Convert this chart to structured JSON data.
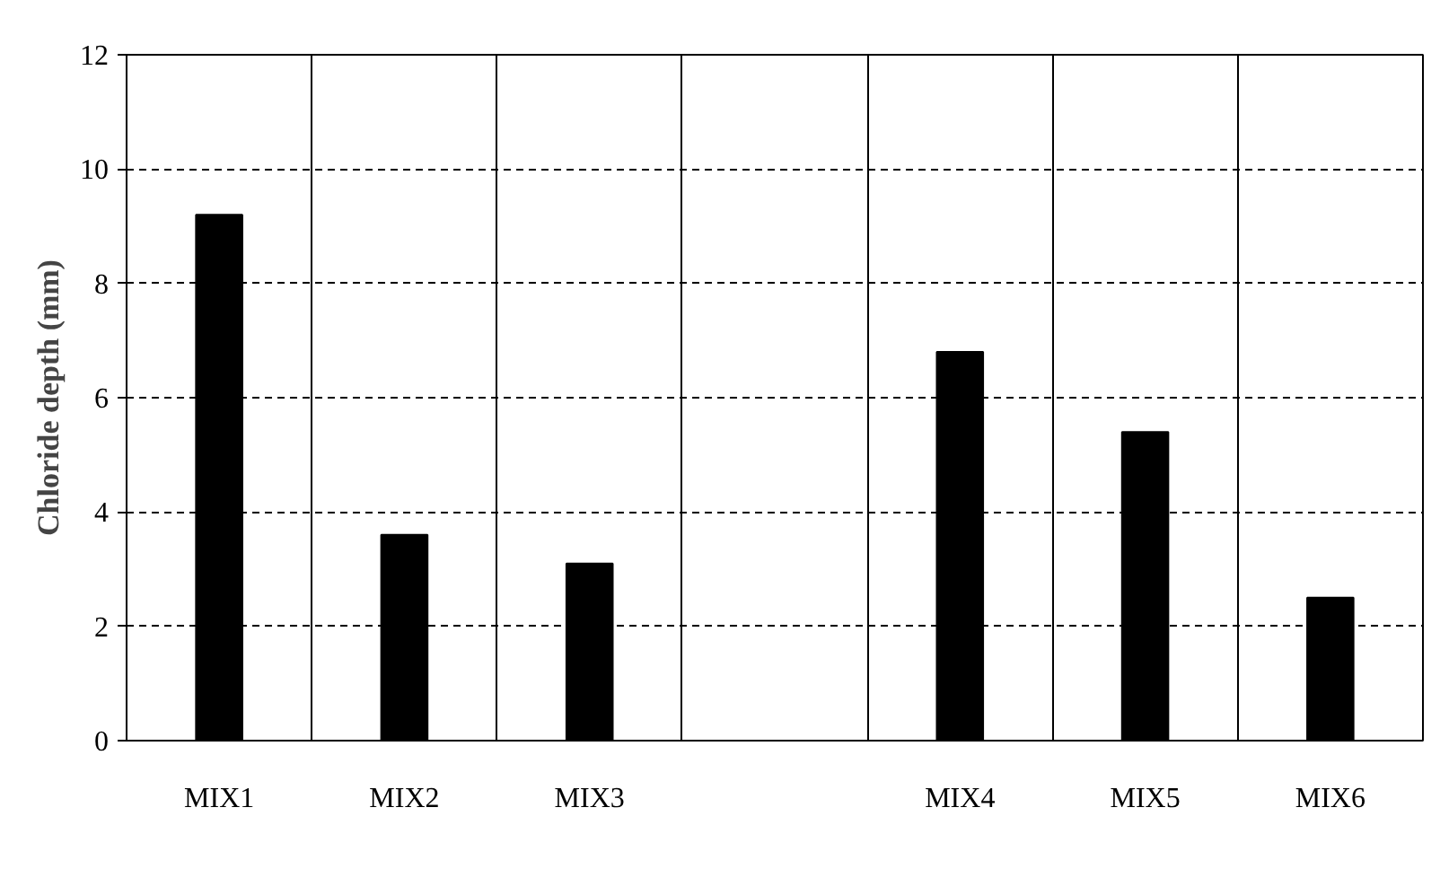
{
  "chart_data": {
    "type": "bar",
    "ylabel": "Chloride depth (mm)",
    "categories": [
      "MIX1",
      "MIX2",
      "MIX3",
      null,
      "MIX4",
      "MIX5",
      "MIX6"
    ],
    "values": [
      9.2,
      3.6,
      3.1,
      null,
      6.8,
      5.4,
      2.5
    ],
    "color": "#000000",
    "ylim": [
      0,
      12
    ],
    "yticks": [
      0,
      2,
      4,
      6,
      8,
      10,
      12
    ],
    "grid": true
  }
}
